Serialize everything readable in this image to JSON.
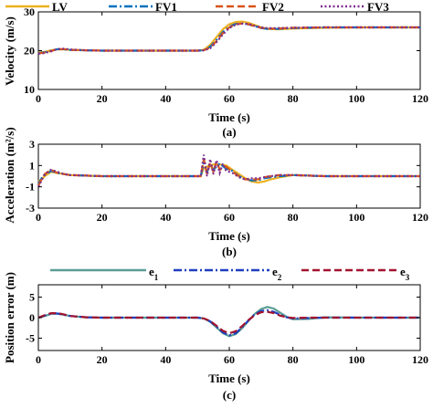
{
  "figure": {
    "panels": [
      {
        "id": "a",
        "caption": "(a)"
      },
      {
        "id": "b",
        "caption": "(b)"
      },
      {
        "id": "c",
        "caption": "(c)"
      }
    ]
  },
  "colors": {
    "LV": "#EDB120",
    "FV1": "#0072BD",
    "FV2": "#D95319",
    "FV3": "#7E2F8E",
    "e1": "#5A9E96",
    "e2": "#1F3FC0",
    "e3": "#A2142F"
  },
  "chart_data": [
    {
      "type": "line",
      "ylabel": "Velocity (m/s)",
      "xlabel": "Time (s)",
      "xlim": [
        0,
        120
      ],
      "ylim": [
        10,
        30
      ],
      "xticks": [
        0,
        20,
        40,
        60,
        80,
        100,
        120
      ],
      "yticks": [
        10,
        20,
        30
      ],
      "grid": false,
      "legend": "top, horizontal",
      "series": [
        {
          "name": "LV",
          "style": "solid",
          "x": [
            0,
            2,
            4,
            6,
            8,
            10,
            15,
            20,
            30,
            40,
            50,
            52,
            54,
            56,
            58,
            60,
            62,
            64,
            66,
            68,
            70,
            72,
            75,
            80,
            90,
            100,
            110,
            120
          ],
          "y": [
            19.5,
            19.7,
            20.1,
            20.3,
            20.3,
            20.2,
            20.1,
            20.0,
            20.0,
            20.0,
            20.0,
            20.2,
            21.5,
            23.5,
            25.5,
            26.8,
            27.4,
            27.5,
            27.2,
            26.6,
            26.0,
            25.6,
            25.5,
            25.7,
            25.9,
            26.0,
            26.0,
            26.0
          ]
        },
        {
          "name": "FV1",
          "style": "dashdot",
          "x": [
            0,
            2,
            4,
            6,
            8,
            10,
            15,
            20,
            30,
            40,
            50,
            52,
            54,
            56,
            58,
            60,
            62,
            64,
            66,
            68,
            70,
            72,
            75,
            80,
            90,
            100,
            110,
            120
          ],
          "y": [
            19.4,
            19.6,
            20.0,
            20.4,
            20.3,
            20.2,
            20.1,
            20.0,
            20.0,
            20.0,
            20.0,
            20.1,
            21.0,
            22.8,
            24.8,
            26.2,
            26.9,
            27.0,
            26.8,
            26.3,
            25.8,
            25.6,
            25.6,
            25.8,
            26.0,
            26.0,
            26.0,
            26.0
          ]
        },
        {
          "name": "FV2",
          "style": "dash",
          "x": [
            0,
            2,
            4,
            6,
            8,
            10,
            15,
            20,
            30,
            40,
            50,
            52,
            54,
            56,
            58,
            60,
            62,
            64,
            66,
            68,
            70,
            72,
            75,
            80,
            90,
            100,
            110,
            120
          ],
          "y": [
            19.3,
            19.5,
            19.9,
            20.4,
            20.4,
            20.2,
            20.1,
            20.0,
            20.0,
            20.0,
            20.0,
            20.1,
            20.8,
            22.5,
            24.5,
            26.0,
            26.8,
            27.0,
            26.8,
            26.3,
            25.9,
            25.7,
            25.7,
            25.9,
            26.0,
            26.0,
            26.0,
            26.0
          ]
        },
        {
          "name": "FV3",
          "style": "dot",
          "x": [
            0,
            2,
            4,
            6,
            8,
            10,
            15,
            20,
            30,
            40,
            50,
            52,
            54,
            56,
            58,
            60,
            62,
            64,
            66,
            68,
            70,
            72,
            75,
            80,
            90,
            100,
            110,
            120
          ],
          "y": [
            19.2,
            19.4,
            19.8,
            20.4,
            20.5,
            20.3,
            20.1,
            20.0,
            20.0,
            20.0,
            20.0,
            20.1,
            20.6,
            22.2,
            24.2,
            25.8,
            26.7,
            27.0,
            26.9,
            26.4,
            26.0,
            25.8,
            25.8,
            25.9,
            26.0,
            26.0,
            26.0,
            26.0
          ]
        }
      ]
    },
    {
      "type": "line",
      "ylabel": "Acceleration (m²/s)",
      "xlabel": "Time (s)",
      "xlim": [
        0,
        120
      ],
      "ylim": [
        -3,
        3
      ],
      "xticks": [
        0,
        20,
        40,
        60,
        80,
        100,
        120
      ],
      "yticks": [
        -3,
        -1,
        1,
        3
      ],
      "grid": false,
      "series": [
        {
          "name": "LV",
          "style": "solid",
          "x": [
            0,
            1,
            2,
            4,
            6,
            8,
            10,
            20,
            40,
            51,
            52,
            53,
            55,
            57,
            59,
            61,
            63,
            65,
            67,
            69,
            71,
            73,
            76,
            80,
            90,
            100,
            120
          ],
          "y": [
            -0.5,
            -0.3,
            0.0,
            0.4,
            0.3,
            0.2,
            0.1,
            0.0,
            0.0,
            0.0,
            0.8,
            0.9,
            1.1,
            1.1,
            1.0,
            0.6,
            0.2,
            -0.2,
            -0.5,
            -0.6,
            -0.5,
            -0.3,
            -0.1,
            0.1,
            0.0,
            0.0,
            0.0
          ]
        },
        {
          "name": "FV1",
          "style": "dashdot",
          "x": [
            0,
            1,
            2,
            4,
            6,
            8,
            10,
            20,
            40,
            51,
            52,
            53,
            54,
            55,
            57,
            59,
            61,
            63,
            65,
            67,
            69,
            71,
            73,
            76,
            80,
            90,
            100,
            120
          ],
          "y": [
            -0.8,
            -0.2,
            0.1,
            0.5,
            0.3,
            0.2,
            0.1,
            0.0,
            0.0,
            0.0,
            1.2,
            0.4,
            1.1,
            0.6,
            1.2,
            0.7,
            0.5,
            0.0,
            -0.3,
            -0.4,
            -0.4,
            -0.2,
            -0.1,
            0.0,
            0.1,
            0.0,
            0.0,
            0.0
          ]
        },
        {
          "name": "FV2",
          "style": "dash",
          "x": [
            0,
            1,
            2,
            4,
            6,
            8,
            10,
            20,
            40,
            51,
            52,
            53,
            54,
            55,
            56,
            57,
            59,
            61,
            63,
            65,
            67,
            69,
            71,
            73,
            76,
            80,
            90,
            100,
            120
          ],
          "y": [
            -0.9,
            -0.3,
            0.2,
            0.6,
            0.3,
            0.2,
            0.1,
            0.0,
            0.0,
            0.0,
            1.6,
            0.2,
            1.3,
            0.4,
            1.4,
            0.6,
            0.9,
            0.4,
            0.0,
            -0.3,
            -0.3,
            -0.3,
            -0.1,
            0.0,
            0.1,
            0.1,
            0.0,
            0.0,
            0.0
          ]
        },
        {
          "name": "FV3",
          "style": "dot",
          "x": [
            0,
            1,
            2,
            4,
            6,
            8,
            10,
            20,
            40,
            51,
            52,
            53,
            54,
            55,
            56,
            57,
            58,
            59,
            61,
            63,
            65,
            67,
            69,
            71,
            73,
            76,
            80,
            90,
            100,
            120
          ],
          "y": [
            -1.0,
            -0.4,
            0.2,
            0.6,
            0.4,
            0.2,
            0.1,
            0.0,
            0.0,
            0.0,
            2.0,
            0.0,
            1.6,
            0.2,
            1.5,
            0.3,
            1.2,
            0.5,
            0.3,
            -0.1,
            -0.3,
            -0.2,
            -0.2,
            -0.1,
            0.0,
            0.1,
            0.1,
            0.0,
            0.0,
            0.0
          ]
        }
      ]
    },
    {
      "type": "line",
      "ylabel": "Position error (m)",
      "xlabel": "Time (s)",
      "xlim": [
        0,
        120
      ],
      "ylim": [
        -8,
        8
      ],
      "xticks": [
        0,
        20,
        40,
        60,
        80,
        100,
        120
      ],
      "yticks": [
        -5,
        0,
        5
      ],
      "grid": false,
      "legend": "top, horizontal",
      "series": [
        {
          "name": "e1",
          "style": "solid",
          "x": [
            0,
            2,
            4,
            6,
            8,
            10,
            15,
            20,
            30,
            40,
            50,
            52,
            54,
            56,
            58,
            60,
            62,
            64,
            66,
            68,
            70,
            72,
            74,
            76,
            78,
            80,
            85,
            90,
            100,
            110,
            120
          ],
          "y": [
            0.0,
            0.4,
            0.9,
            1.0,
            0.7,
            0.4,
            0.1,
            0.0,
            0.0,
            0.0,
            0.0,
            -0.2,
            -1.0,
            -2.4,
            -3.8,
            -4.5,
            -4.0,
            -2.6,
            -0.8,
            0.9,
            2.1,
            2.6,
            2.2,
            1.2,
            0.2,
            -0.4,
            -0.3,
            0.1,
            0.0,
            0.0,
            0.0
          ]
        },
        {
          "name": "e2",
          "style": "dashdot",
          "x": [
            0,
            2,
            4,
            6,
            8,
            10,
            15,
            20,
            30,
            40,
            50,
            52,
            54,
            56,
            58,
            60,
            62,
            64,
            66,
            68,
            70,
            72,
            74,
            76,
            78,
            80,
            85,
            90,
            100,
            110,
            120
          ],
          "y": [
            0.0,
            0.5,
            1.0,
            1.0,
            0.7,
            0.4,
            0.1,
            0.0,
            0.0,
            0.0,
            0.0,
            -0.2,
            -0.9,
            -2.2,
            -3.6,
            -4.3,
            -3.8,
            -2.4,
            -0.7,
            0.8,
            1.6,
            1.8,
            1.4,
            0.7,
            0.1,
            -0.2,
            -0.1,
            0.0,
            0.0,
            0.0,
            0.0
          ]
        },
        {
          "name": "e3",
          "style": "dash",
          "x": [
            0,
            2,
            4,
            6,
            8,
            10,
            15,
            20,
            30,
            40,
            50,
            52,
            54,
            56,
            58,
            60,
            62,
            64,
            66,
            68,
            70,
            72,
            74,
            76,
            78,
            80,
            85,
            90,
            100,
            110,
            120
          ],
          "y": [
            0.0,
            0.6,
            1.1,
            1.1,
            0.8,
            0.4,
            0.1,
            0.0,
            0.0,
            0.0,
            0.0,
            -0.2,
            -0.8,
            -2.0,
            -3.2,
            -3.8,
            -3.3,
            -2.1,
            -0.6,
            0.6,
            1.3,
            1.4,
            1.1,
            0.5,
            0.1,
            -0.1,
            0.0,
            0.0,
            0.0,
            0.0,
            0.0
          ]
        }
      ]
    }
  ]
}
